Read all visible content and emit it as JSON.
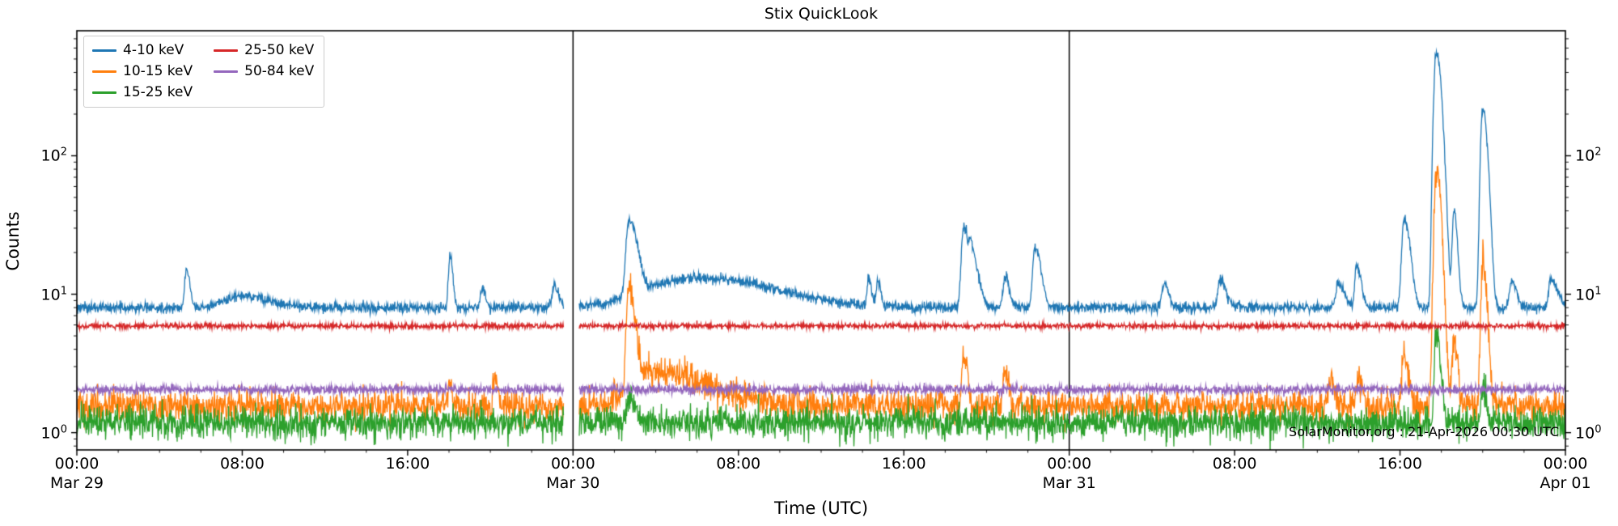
{
  "page": {
    "title": "Stix QuickLook"
  },
  "chart_data": {
    "type": "line",
    "title": "Stix QuickLook",
    "xlabel": "Time (UTC)",
    "ylabel": "Counts",
    "annotation": "SolarMonitor.org : 21-Apr-2026 00:30 UTC",
    "yscale": "log",
    "ylim": [
      0.75,
      800
    ],
    "x_range_hours": [
      0,
      72
    ],
    "x_start_date": "Mar 29",
    "grid": false,
    "legend_position": "upper left",
    "day_boundary_lines_hours": [
      24,
      48
    ],
    "data_gap_hours": [
      23.55,
      24.3
    ],
    "x_ticks": [
      {
        "t": 0,
        "label": "00:00"
      },
      {
        "t": 8,
        "label": "08:00"
      },
      {
        "t": 16,
        "label": "16:00"
      },
      {
        "t": 24,
        "label": "00:00"
      },
      {
        "t": 32,
        "label": "08:00"
      },
      {
        "t": 40,
        "label": "16:00"
      },
      {
        "t": 48,
        "label": "00:00"
      },
      {
        "t": 56,
        "label": "08:00"
      },
      {
        "t": 64,
        "label": "16:00"
      },
      {
        "t": 72,
        "label": "00:00"
      }
    ],
    "x_date_labels": [
      {
        "t": 0,
        "label": "Mar 29"
      },
      {
        "t": 24,
        "label": "Mar 30"
      },
      {
        "t": 48,
        "label": "Mar 31"
      },
      {
        "t": 72,
        "label": "Apr 01"
      }
    ],
    "y_ticks": [
      {
        "value": 1,
        "exp": "0"
      },
      {
        "value": 10,
        "exp": "1"
      },
      {
        "value": 100,
        "exp": "2"
      }
    ],
    "series": [
      {
        "name": "4-10 keV",
        "color": "#1f77b4",
        "baseline": 8.0,
        "noise_sigma": 0.04,
        "spikes": [
          {
            "t": 5.3,
            "peak": 15,
            "rise": 0.08,
            "decay": 0.15
          },
          {
            "t": 8.0,
            "peak": 9.8,
            "rise": 0.8,
            "decay": 1.2
          },
          {
            "t": 18.05,
            "peak": 19,
            "rise": 0.07,
            "decay": 0.12
          },
          {
            "t": 19.6,
            "peak": 11,
            "rise": 0.08,
            "decay": 0.15
          },
          {
            "t": 23.1,
            "peak": 11.5,
            "rise": 0.1,
            "decay": 0.2
          },
          {
            "t": 26.7,
            "peak": 33,
            "rise": 0.12,
            "decay": 0.35
          },
          {
            "t": 30.0,
            "peak": 13.2,
            "rise": 2.2,
            "decay": 3.5
          },
          {
            "t": 38.3,
            "peak": 13,
            "rise": 0.07,
            "decay": 0.12
          },
          {
            "t": 38.75,
            "peak": 12.5,
            "rise": 0.07,
            "decay": 0.12
          },
          {
            "t": 42.9,
            "peak": 31,
            "rise": 0.1,
            "decay": 0.2
          },
          {
            "t": 43.25,
            "peak": 20,
            "rise": 0.08,
            "decay": 0.3
          },
          {
            "t": 44.9,
            "peak": 13,
            "rise": 0.1,
            "decay": 0.2
          },
          {
            "t": 46.35,
            "peak": 22,
            "rise": 0.1,
            "decay": 0.25
          },
          {
            "t": 52.6,
            "peak": 12,
            "rise": 0.1,
            "decay": 0.2
          },
          {
            "t": 55.3,
            "peak": 13,
            "rise": 0.1,
            "decay": 0.25
          },
          {
            "t": 61.0,
            "peak": 12,
            "rise": 0.1,
            "decay": 0.3
          },
          {
            "t": 61.9,
            "peak": 16,
            "rise": 0.08,
            "decay": 0.2
          },
          {
            "t": 64.2,
            "peak": 35,
            "rise": 0.1,
            "decay": 0.25
          },
          {
            "t": 65.75,
            "peak": 560,
            "rise": 0.1,
            "decay": 0.22
          },
          {
            "t": 66.6,
            "peak": 40,
            "rise": 0.07,
            "decay": 0.15
          },
          {
            "t": 68.0,
            "peak": 215,
            "rise": 0.09,
            "decay": 0.2
          },
          {
            "t": 69.4,
            "peak": 12.5,
            "rise": 0.1,
            "decay": 0.2
          },
          {
            "t": 71.3,
            "peak": 13,
            "rise": 0.1,
            "decay": 0.3
          }
        ]
      },
      {
        "name": "10-15 keV",
        "color": "#ff7f0e",
        "baseline": 1.55,
        "noise_sigma": 0.13,
        "spikes": [
          {
            "t": 18.05,
            "peak": 2.4,
            "rise": 0.06,
            "decay": 0.1
          },
          {
            "t": 20.2,
            "peak": 2.5,
            "rise": 0.07,
            "decay": 0.12
          },
          {
            "t": 26.7,
            "peak": 10.5,
            "rise": 0.1,
            "decay": 0.25
          },
          {
            "t": 27.6,
            "peak": 2.7,
            "rise": 0.8,
            "decay": 2.8
          },
          {
            "t": 42.9,
            "peak": 3.7,
            "rise": 0.08,
            "decay": 0.15
          },
          {
            "t": 44.9,
            "peak": 2.9,
            "rise": 0.08,
            "decay": 0.15
          },
          {
            "t": 60.6,
            "peak": 2.5,
            "rise": 0.1,
            "decay": 0.2
          },
          {
            "t": 62.0,
            "peak": 2.6,
            "rise": 0.1,
            "decay": 0.2
          },
          {
            "t": 64.2,
            "peak": 3.7,
            "rise": 0.1,
            "decay": 0.2
          },
          {
            "t": 65.75,
            "peak": 78,
            "rise": 0.09,
            "decay": 0.2
          },
          {
            "t": 66.6,
            "peak": 4.6,
            "rise": 0.07,
            "decay": 0.15
          },
          {
            "t": 68.0,
            "peak": 15,
            "rise": 0.08,
            "decay": 0.18
          }
        ]
      },
      {
        "name": "15-25 keV",
        "color": "#2ca02c",
        "baseline": 1.18,
        "noise_sigma": 0.13,
        "spikes": [
          {
            "t": 26.7,
            "peak": 1.7,
            "rise": 0.1,
            "decay": 0.3
          },
          {
            "t": 65.75,
            "peak": 5.2,
            "rise": 0.08,
            "decay": 0.18
          },
          {
            "t": 68.0,
            "peak": 2.1,
            "rise": 0.08,
            "decay": 0.15
          }
        ]
      },
      {
        "name": "25-50 keV",
        "color": "#d62728",
        "baseline": 5.9,
        "noise_sigma": 0.022,
        "spikes": []
      },
      {
        "name": "50-84 keV",
        "color": "#9467bd",
        "baseline": 2.05,
        "noise_sigma": 0.035,
        "spikes": []
      }
    ]
  }
}
